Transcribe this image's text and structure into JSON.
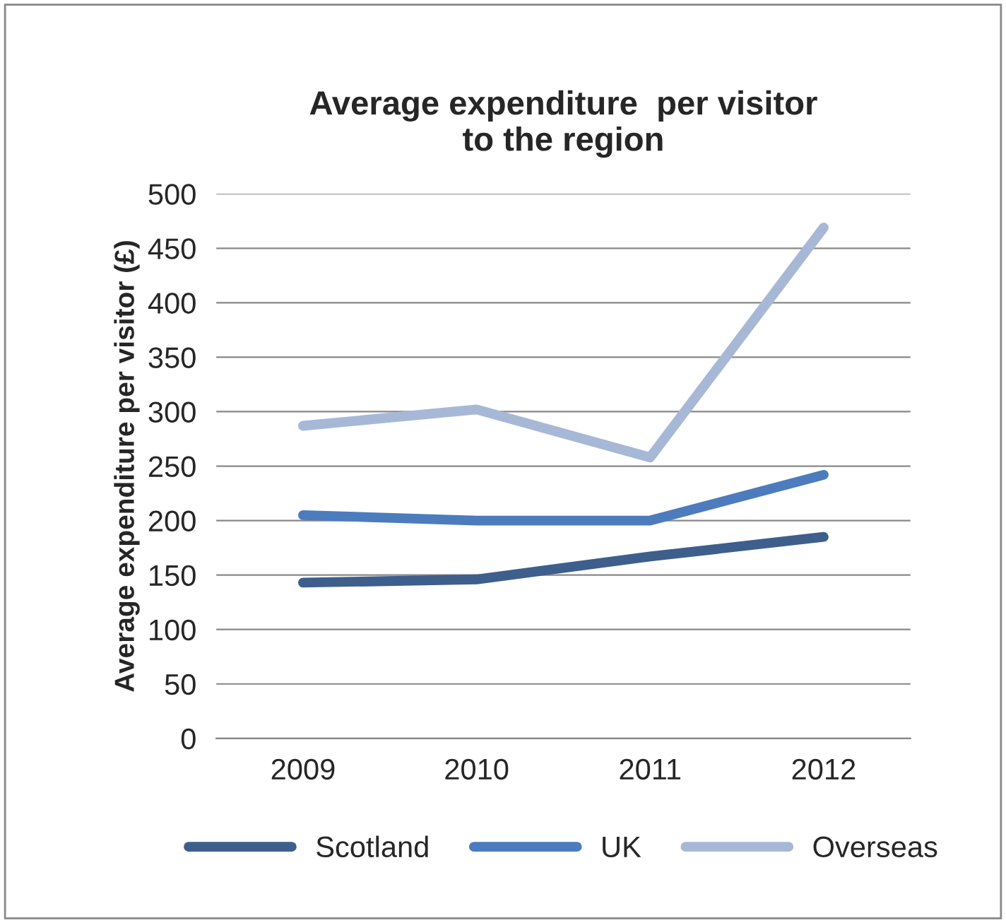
{
  "chart_data": {
    "type": "line",
    "title": "Average expenditure  per visitor\nto the region",
    "ylabel": "Average expenditure per visitor (£)",
    "categories": [
      "2009",
      "2010",
      "2011",
      "2012"
    ],
    "series": [
      {
        "name": "Scotland",
        "color": "#3e5f8c",
        "values": [
          143,
          146,
          167,
          185
        ]
      },
      {
        "name": "UK",
        "color": "#4c7cbd",
        "values": [
          205,
          200,
          200,
          242
        ]
      },
      {
        "name": "Overseas",
        "color": "#a7b8d7",
        "values": [
          287,
          302,
          258,
          469
        ]
      }
    ],
    "ylim": [
      0,
      500
    ],
    "yticks": [
      0,
      50,
      100,
      150,
      200,
      250,
      300,
      350,
      400,
      450,
      500
    ],
    "grid": "y",
    "legend": "bottom",
    "line_style": "solid",
    "marker": "none"
  }
}
